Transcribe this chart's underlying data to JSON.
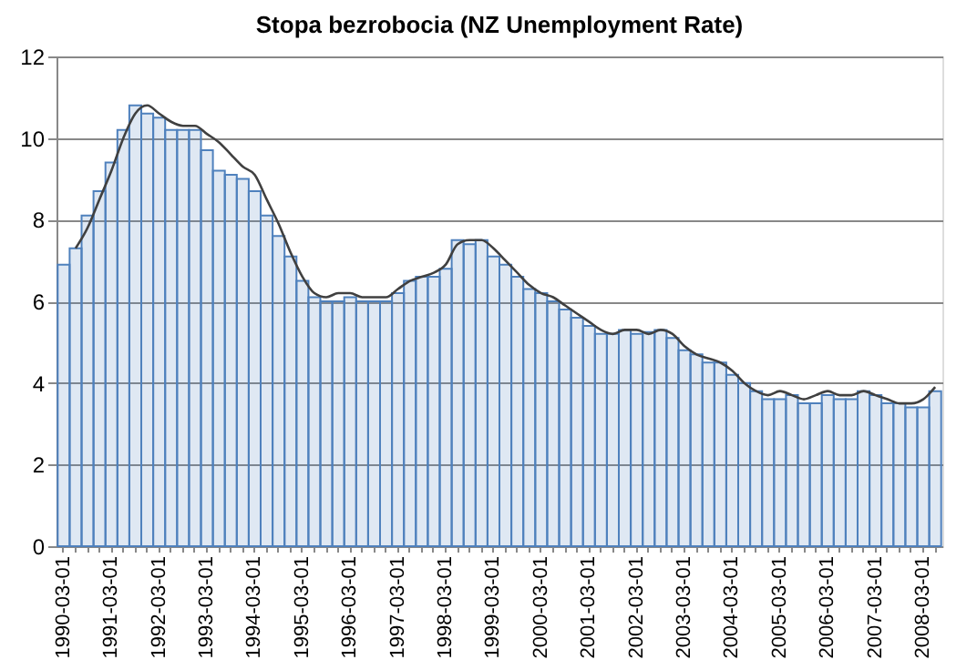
{
  "chart_data": {
    "type": "bar",
    "title": "Stopa bezrobocia (NZ Unemployment Rate)",
    "categories": [
      "1990-03-01",
      null,
      null,
      null,
      "1991-03-01",
      null,
      null,
      null,
      "1992-03-01",
      null,
      null,
      null,
      "1993-03-01",
      null,
      null,
      null,
      "1994-03-01",
      null,
      null,
      null,
      "1995-03-01",
      null,
      null,
      null,
      "1996-03-01",
      null,
      null,
      null,
      "1997-03-01",
      null,
      null,
      null,
      "1998-03-01",
      null,
      null,
      null,
      "1999-03-01",
      null,
      null,
      null,
      "2000-03-01",
      null,
      null,
      null,
      "2001-03-01",
      null,
      null,
      null,
      "2002-03-01",
      null,
      null,
      null,
      "2003-03-01",
      null,
      null,
      null,
      "2004-03-01",
      null,
      null,
      null,
      "2005-03-01",
      null,
      null,
      null,
      "2006-03-01",
      null,
      null,
      null,
      "2007-03-01",
      null,
      null,
      null,
      "2008-03-01",
      null
    ],
    "series": [
      {
        "color": "#4f81bd",
        "values": [
          6.9,
          7.3,
          8.1,
          8.7,
          9.4,
          10.2,
          10.8,
          10.6,
          10.5,
          10.2,
          10.2,
          10.2,
          9.7,
          9.2,
          9.1,
          9.0,
          8.7,
          8.1,
          7.6,
          7.1,
          6.5,
          6.1,
          6.0,
          6.0,
          6.1,
          6.0,
          6.0,
          6.0,
          6.2,
          6.5,
          6.6,
          6.6,
          6.8,
          7.5,
          7.4,
          7.5,
          7.1,
          6.9,
          6.6,
          6.3,
          6.2,
          6.0,
          5.8,
          5.6,
          5.4,
          5.2,
          5.2,
          5.3,
          5.2,
          5.25,
          5.3,
          5.1,
          4.8,
          4.7,
          4.5,
          4.5,
          4.2,
          4.0,
          3.8,
          3.6,
          3.6,
          3.7,
          3.5,
          3.5,
          3.7,
          3.6,
          3.6,
          3.8,
          3.7,
          3.5,
          3.5,
          3.4,
          3.4,
          3.8
        ]
      },
      {
        "type": "line",
        "color": "#404040",
        "values": [
          null,
          7.3,
          7.8,
          8.5,
          9.2,
          10.0,
          10.6,
          10.8,
          10.6,
          10.4,
          10.3,
          10.3,
          10.1,
          9.9,
          9.6,
          9.3,
          9.1,
          8.5,
          7.9,
          7.2,
          6.6,
          6.2,
          6.1,
          6.2,
          6.2,
          6.1,
          6.1,
          6.1,
          6.3,
          6.5,
          6.6,
          6.7,
          6.9,
          7.4,
          7.5,
          7.5,
          7.3,
          7.0,
          6.7,
          6.4,
          6.2,
          6.1,
          5.9,
          5.7,
          5.5,
          5.3,
          5.2,
          5.3,
          5.3,
          5.2,
          5.3,
          5.2,
          4.9,
          4.7,
          4.6,
          4.5,
          4.3,
          4.0,
          3.8,
          3.7,
          3.8,
          3.7,
          3.6,
          3.7,
          3.8,
          3.7,
          3.7,
          3.8,
          3.7,
          3.6,
          3.5,
          3.5,
          3.6,
          3.9
        ]
      }
    ],
    "ylim": [
      0,
      12
    ],
    "yticks": [
      0,
      2,
      4,
      6,
      8,
      10,
      12
    ],
    "grid": "y",
    "legend": false
  }
}
